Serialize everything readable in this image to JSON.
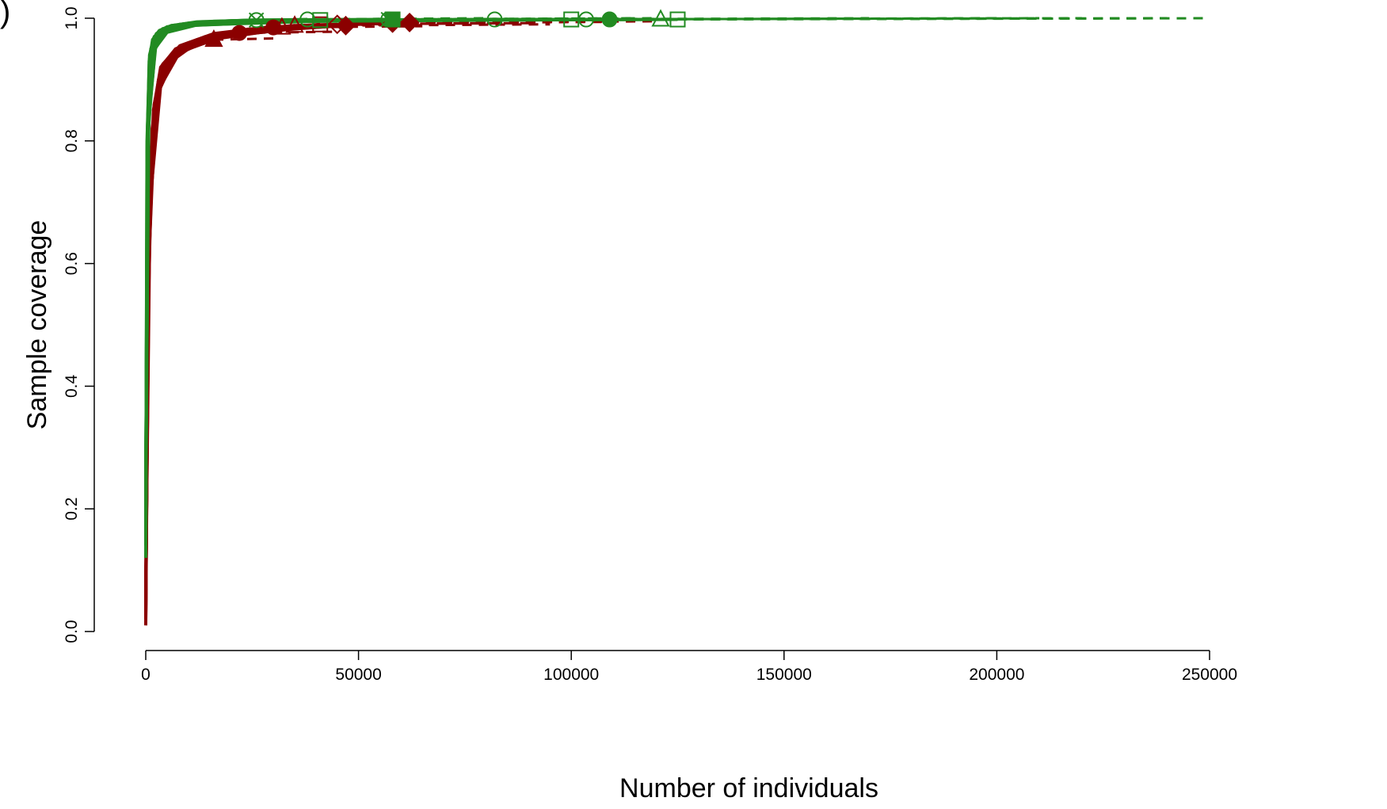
{
  "panel_label": ")",
  "chart_data": {
    "type": "line",
    "title": "",
    "xlabel": "Number of individuals",
    "ylabel": "Sample coverage",
    "xlim": [
      0,
      250000
    ],
    "ylim": [
      0,
      1.0
    ],
    "x_ticks": [
      0,
      50000,
      100000,
      150000,
      200000,
      250000
    ],
    "x_tick_labels": [
      "0",
      "50000",
      "100000",
      "150000",
      "200000",
      "250000"
    ],
    "y_ticks": [
      0.0,
      0.2,
      0.4,
      0.6,
      0.8,
      1.0
    ],
    "y_tick_labels": [
      "0.0",
      "0.2",
      "0.4",
      "0.6",
      "0.8",
      "1.0"
    ],
    "grid": false,
    "legend": "none",
    "colors": {
      "red": "#8b0000",
      "green": "#228b22"
    },
    "series": [
      {
        "color": "red",
        "x": [
          0,
          500,
          1500,
          3000,
          6000,
          12000,
          20000,
          30000
        ],
        "y": [
          0.01,
          0.55,
          0.82,
          0.9,
          0.94,
          0.965,
          0.978,
          0.985
        ],
        "extrap_to": 45000,
        "marker": "circle-filled"
      },
      {
        "color": "red",
        "x": [
          0,
          600,
          1800,
          3500,
          7000,
          14000,
          24000,
          35000
        ],
        "y": [
          0.02,
          0.6,
          0.85,
          0.92,
          0.95,
          0.97,
          0.982,
          0.988
        ],
        "extrap_to": 60000,
        "marker": "triangle-open"
      },
      {
        "color": "red",
        "x": [
          0,
          700,
          2000,
          4000,
          8000,
          16000,
          28000,
          45000
        ],
        "y": [
          0.05,
          0.62,
          0.86,
          0.925,
          0.955,
          0.975,
          0.985,
          0.99
        ],
        "extrap_to": 90000,
        "marker": "diamond-open"
      },
      {
        "color": "red",
        "x": [
          0,
          500,
          1500,
          3000,
          6000,
          10000,
          14000,
          16000
        ],
        "y": [
          0.03,
          0.5,
          0.8,
          0.89,
          0.93,
          0.95,
          0.96,
          0.965
        ],
        "extrap_to": 30000,
        "marker": "triangle-filled"
      },
      {
        "color": "red",
        "x": [
          0,
          800,
          2500,
          5000,
          10000,
          20000,
          35000,
          58000
        ],
        "y": [
          0.06,
          0.66,
          0.87,
          0.93,
          0.96,
          0.978,
          0.988,
          0.992
        ],
        "extrap_to": 110000,
        "marker": "diamond-filled"
      },
      {
        "color": "red",
        "x": [
          0,
          600,
          2000,
          4000,
          9000,
          18000,
          30000,
          41000
        ],
        "y": [
          0.04,
          0.58,
          0.84,
          0.915,
          0.95,
          0.972,
          0.984,
          0.99
        ],
        "extrap_to": 80000,
        "marker": "square-open"
      },
      {
        "color": "red",
        "x": [
          0,
          700,
          2200,
          4500,
          9000,
          17000,
          26000,
          32000
        ],
        "y": [
          0.02,
          0.6,
          0.85,
          0.92,
          0.952,
          0.97,
          0.98,
          0.985
        ],
        "extrap_to": 65000,
        "marker": "triangle-open"
      },
      {
        "color": "red",
        "x": [
          0,
          900,
          3000,
          7000,
          15000,
          30000,
          50000,
          62000
        ],
        "y": [
          0.08,
          0.68,
          0.88,
          0.94,
          0.965,
          0.98,
          0.99,
          0.993
        ],
        "extrap_to": 120000,
        "marker": "diamond-filled"
      },
      {
        "color": "red",
        "x": [
          0,
          600,
          1800,
          4000,
          8000,
          15000,
          22000
        ],
        "y": [
          0.03,
          0.57,
          0.83,
          0.91,
          0.945,
          0.965,
          0.976
        ],
        "extrap_to": 45000,
        "marker": "circle-filled"
      },
      {
        "color": "red",
        "x": [
          0,
          1000,
          3500,
          8000,
          18000,
          35000,
          47000
        ],
        "y": [
          0.07,
          0.7,
          0.89,
          0.945,
          0.97,
          0.983,
          0.988
        ],
        "extrap_to": 95000,
        "marker": "diamond-filled"
      },
      {
        "color": "green",
        "x": [
          0,
          300,
          900,
          2000,
          4000,
          10000,
          20000,
          38000
        ],
        "y": [
          0.15,
          0.8,
          0.94,
          0.97,
          0.983,
          0.992,
          0.996,
          0.998
        ],
        "extrap_to": 80000,
        "marker": "circle-open"
      },
      {
        "color": "green",
        "x": [
          0,
          400,
          1200,
          2500,
          5000,
          12000,
          25000,
          58000
        ],
        "y": [
          0.2,
          0.82,
          0.95,
          0.975,
          0.986,
          0.993,
          0.997,
          0.998
        ],
        "extrap_to": 120000,
        "marker": "square-filled"
      },
      {
        "color": "green",
        "x": [
          0,
          500,
          1500,
          3000,
          6000,
          15000,
          40000,
          82000
        ],
        "y": [
          0.25,
          0.84,
          0.955,
          0.978,
          0.988,
          0.994,
          0.997,
          0.998
        ],
        "extrap_to": 170000,
        "marker": "circle-open"
      },
      {
        "color": "green",
        "x": [
          0,
          500,
          1500,
          3000,
          7000,
          20000,
          50000,
          100000
        ],
        "y": [
          0.22,
          0.83,
          0.95,
          0.976,
          0.988,
          0.994,
          0.997,
          0.998
        ],
        "extrap_to": 200000,
        "marker": "square-open"
      },
      {
        "color": "green",
        "x": [
          0,
          600,
          1800,
          3500,
          8000,
          25000,
          60000,
          103500
        ],
        "y": [
          0.18,
          0.81,
          0.945,
          0.974,
          0.987,
          0.994,
          0.997,
          0.998
        ],
        "extrap_to": 210000,
        "marker": "circle-open"
      },
      {
        "color": "green",
        "x": [
          0,
          600,
          2000,
          4000,
          9000,
          30000,
          70000,
          109000
        ],
        "y": [
          0.26,
          0.85,
          0.955,
          0.978,
          0.989,
          0.995,
          0.997,
          0.998
        ],
        "extrap_to": 220000,
        "marker": "circle-filled"
      },
      {
        "color": "green",
        "x": [
          0,
          700,
          2200,
          4500,
          10000,
          35000,
          80000,
          121000
        ],
        "y": [
          0.21,
          0.83,
          0.95,
          0.976,
          0.988,
          0.995,
          0.997,
          0.998
        ],
        "extrap_to": 240000,
        "marker": "triangle-open"
      },
      {
        "color": "green",
        "x": [
          0,
          700,
          2300,
          5000,
          12000,
          40000,
          85000,
          125000
        ],
        "y": [
          0.24,
          0.84,
          0.952,
          0.977,
          0.989,
          0.995,
          0.997,
          0.998
        ],
        "extrap_to": 250000,
        "marker": "square-open"
      },
      {
        "color": "green",
        "x": [
          0,
          300,
          800,
          1600,
          3200,
          6000,
          12000,
          26000
        ],
        "y": [
          0.12,
          0.78,
          0.93,
          0.965,
          0.98,
          0.988,
          0.994,
          0.997
        ],
        "extrap_to": 55000,
        "marker": "x-circle-open"
      },
      {
        "color": "green",
        "x": [
          0,
          400,
          1100,
          2200,
          4500,
          9000,
          20000,
          41000
        ],
        "y": [
          0.17,
          0.8,
          0.94,
          0.97,
          0.984,
          0.991,
          0.995,
          0.997
        ],
        "extrap_to": 85000,
        "marker": "square-open"
      },
      {
        "color": "green",
        "x": [
          0,
          350,
          1000,
          2000,
          4000,
          8000,
          16000,
          57000
        ],
        "y": [
          0.14,
          0.79,
          0.935,
          0.968,
          0.982,
          0.99,
          0.995,
          0.998
        ],
        "extrap_to": 115000,
        "marker": "x-circle-open"
      }
    ]
  }
}
